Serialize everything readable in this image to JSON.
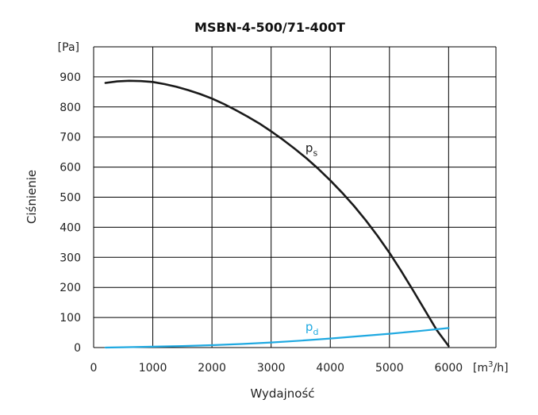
{
  "chart_data": {
    "type": "line",
    "title": "MSBN-4-500/71-400T",
    "xlabel": "Wydajność",
    "ylabel": "Ciśnienie",
    "x_unit": {
      "base": "[m",
      "sup": "3",
      "rest": "/h]"
    },
    "y_unit": "[Pa]",
    "xlim": [
      0,
      6800
    ],
    "ylim": [
      0,
      1000
    ],
    "x_ticks": [
      0,
      1000,
      2000,
      3000,
      4000,
      5000,
      6000
    ],
    "x_tick_labels": [
      "0",
      "1000",
      "2000",
      "3000",
      "4000",
      "5000",
      "6000"
    ],
    "y_ticks": [
      0,
      100,
      200,
      300,
      400,
      500,
      600,
      700,
      800,
      900
    ],
    "y_tick_labels": [
      "0",
      "100",
      "200",
      "300",
      "400",
      "500",
      "600",
      "700",
      "800",
      "900"
    ],
    "grid": true,
    "series": [
      {
        "label_main": "p",
        "label_sub": "s",
        "label_at": [
          3580,
          650
        ],
        "color": "#1a1a1a",
        "points": [
          [
            200,
            880
          ],
          [
            400,
            885
          ],
          [
            600,
            887
          ],
          [
            800,
            886
          ],
          [
            1000,
            883
          ],
          [
            1200,
            876
          ],
          [
            1400,
            867
          ],
          [
            1600,
            856
          ],
          [
            1800,
            843
          ],
          [
            2000,
            828
          ],
          [
            2200,
            810
          ],
          [
            2400,
            790
          ],
          [
            2600,
            768
          ],
          [
            2800,
            745
          ],
          [
            3000,
            719
          ],
          [
            3200,
            691
          ],
          [
            3400,
            661
          ],
          [
            3600,
            629
          ],
          [
            3800,
            594
          ],
          [
            4000,
            556
          ],
          [
            4200,
            515
          ],
          [
            4400,
            471
          ],
          [
            4600,
            423
          ],
          [
            4800,
            371
          ],
          [
            5000,
            315
          ],
          [
            5200,
            254
          ],
          [
            5400,
            190
          ],
          [
            5600,
            124
          ],
          [
            5800,
            58
          ],
          [
            6000,
            5
          ]
        ]
      },
      {
        "label_main": "p",
        "label_sub": "d",
        "label_at": [
          3580,
          55
        ],
        "color": "#1fa9e1",
        "points": [
          [
            200,
            0
          ],
          [
            500,
            1
          ],
          [
            1000,
            3
          ],
          [
            1500,
            5
          ],
          [
            2000,
            8
          ],
          [
            2500,
            12
          ],
          [
            3000,
            17
          ],
          [
            3500,
            23
          ],
          [
            4000,
            30
          ],
          [
            4500,
            38
          ],
          [
            5000,
            46
          ],
          [
            5500,
            55
          ],
          [
            6000,
            65
          ]
        ]
      }
    ]
  }
}
